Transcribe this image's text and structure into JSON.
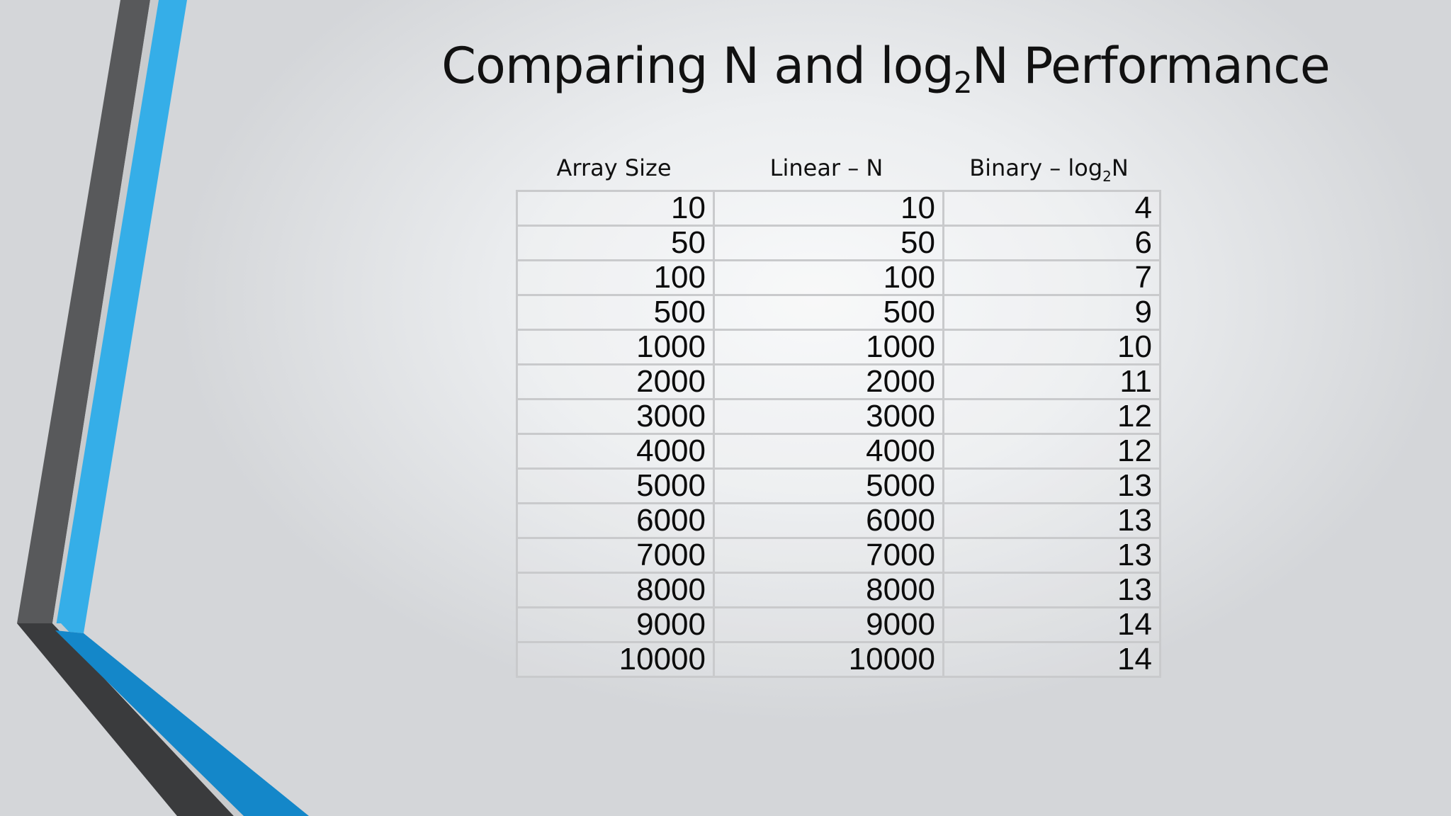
{
  "slide": {
    "title_before": "Comparing N and log",
    "title_sub": "2",
    "title_after": "N Performance"
  },
  "table": {
    "headers": {
      "array_size": "Array Size",
      "linear": "Linear – N",
      "binary_before": "Binary – log",
      "binary_sub": "2",
      "binary_after": "N"
    },
    "rows": [
      {
        "size": "10",
        "linear": "10",
        "binary": "4"
      },
      {
        "size": "50",
        "linear": "50",
        "binary": "6"
      },
      {
        "size": "100",
        "linear": "100",
        "binary": "7"
      },
      {
        "size": "500",
        "linear": "500",
        "binary": "9"
      },
      {
        "size": "1000",
        "linear": "1000",
        "binary": "10"
      },
      {
        "size": "2000",
        "linear": "2000",
        "binary": "11"
      },
      {
        "size": "3000",
        "linear": "3000",
        "binary": "12"
      },
      {
        "size": "4000",
        "linear": "4000",
        "binary": "12"
      },
      {
        "size": "5000",
        "linear": "5000",
        "binary": "13"
      },
      {
        "size": "6000",
        "linear": "6000",
        "binary": "13"
      },
      {
        "size": "7000",
        "linear": "7000",
        "binary": "13"
      },
      {
        "size": "8000",
        "linear": "8000",
        "binary": "13"
      },
      {
        "size": "9000",
        "linear": "9000",
        "binary": "14"
      },
      {
        "size": "10000",
        "linear": "10000",
        "binary": "14"
      }
    ]
  },
  "theme": {
    "accent_blue": "#35aee8",
    "accent_blue_dark": "#1487c9",
    "band_gray": "#58595b",
    "band_gray_dark": "#3a3b3d",
    "table_border": "#c9cacc"
  }
}
